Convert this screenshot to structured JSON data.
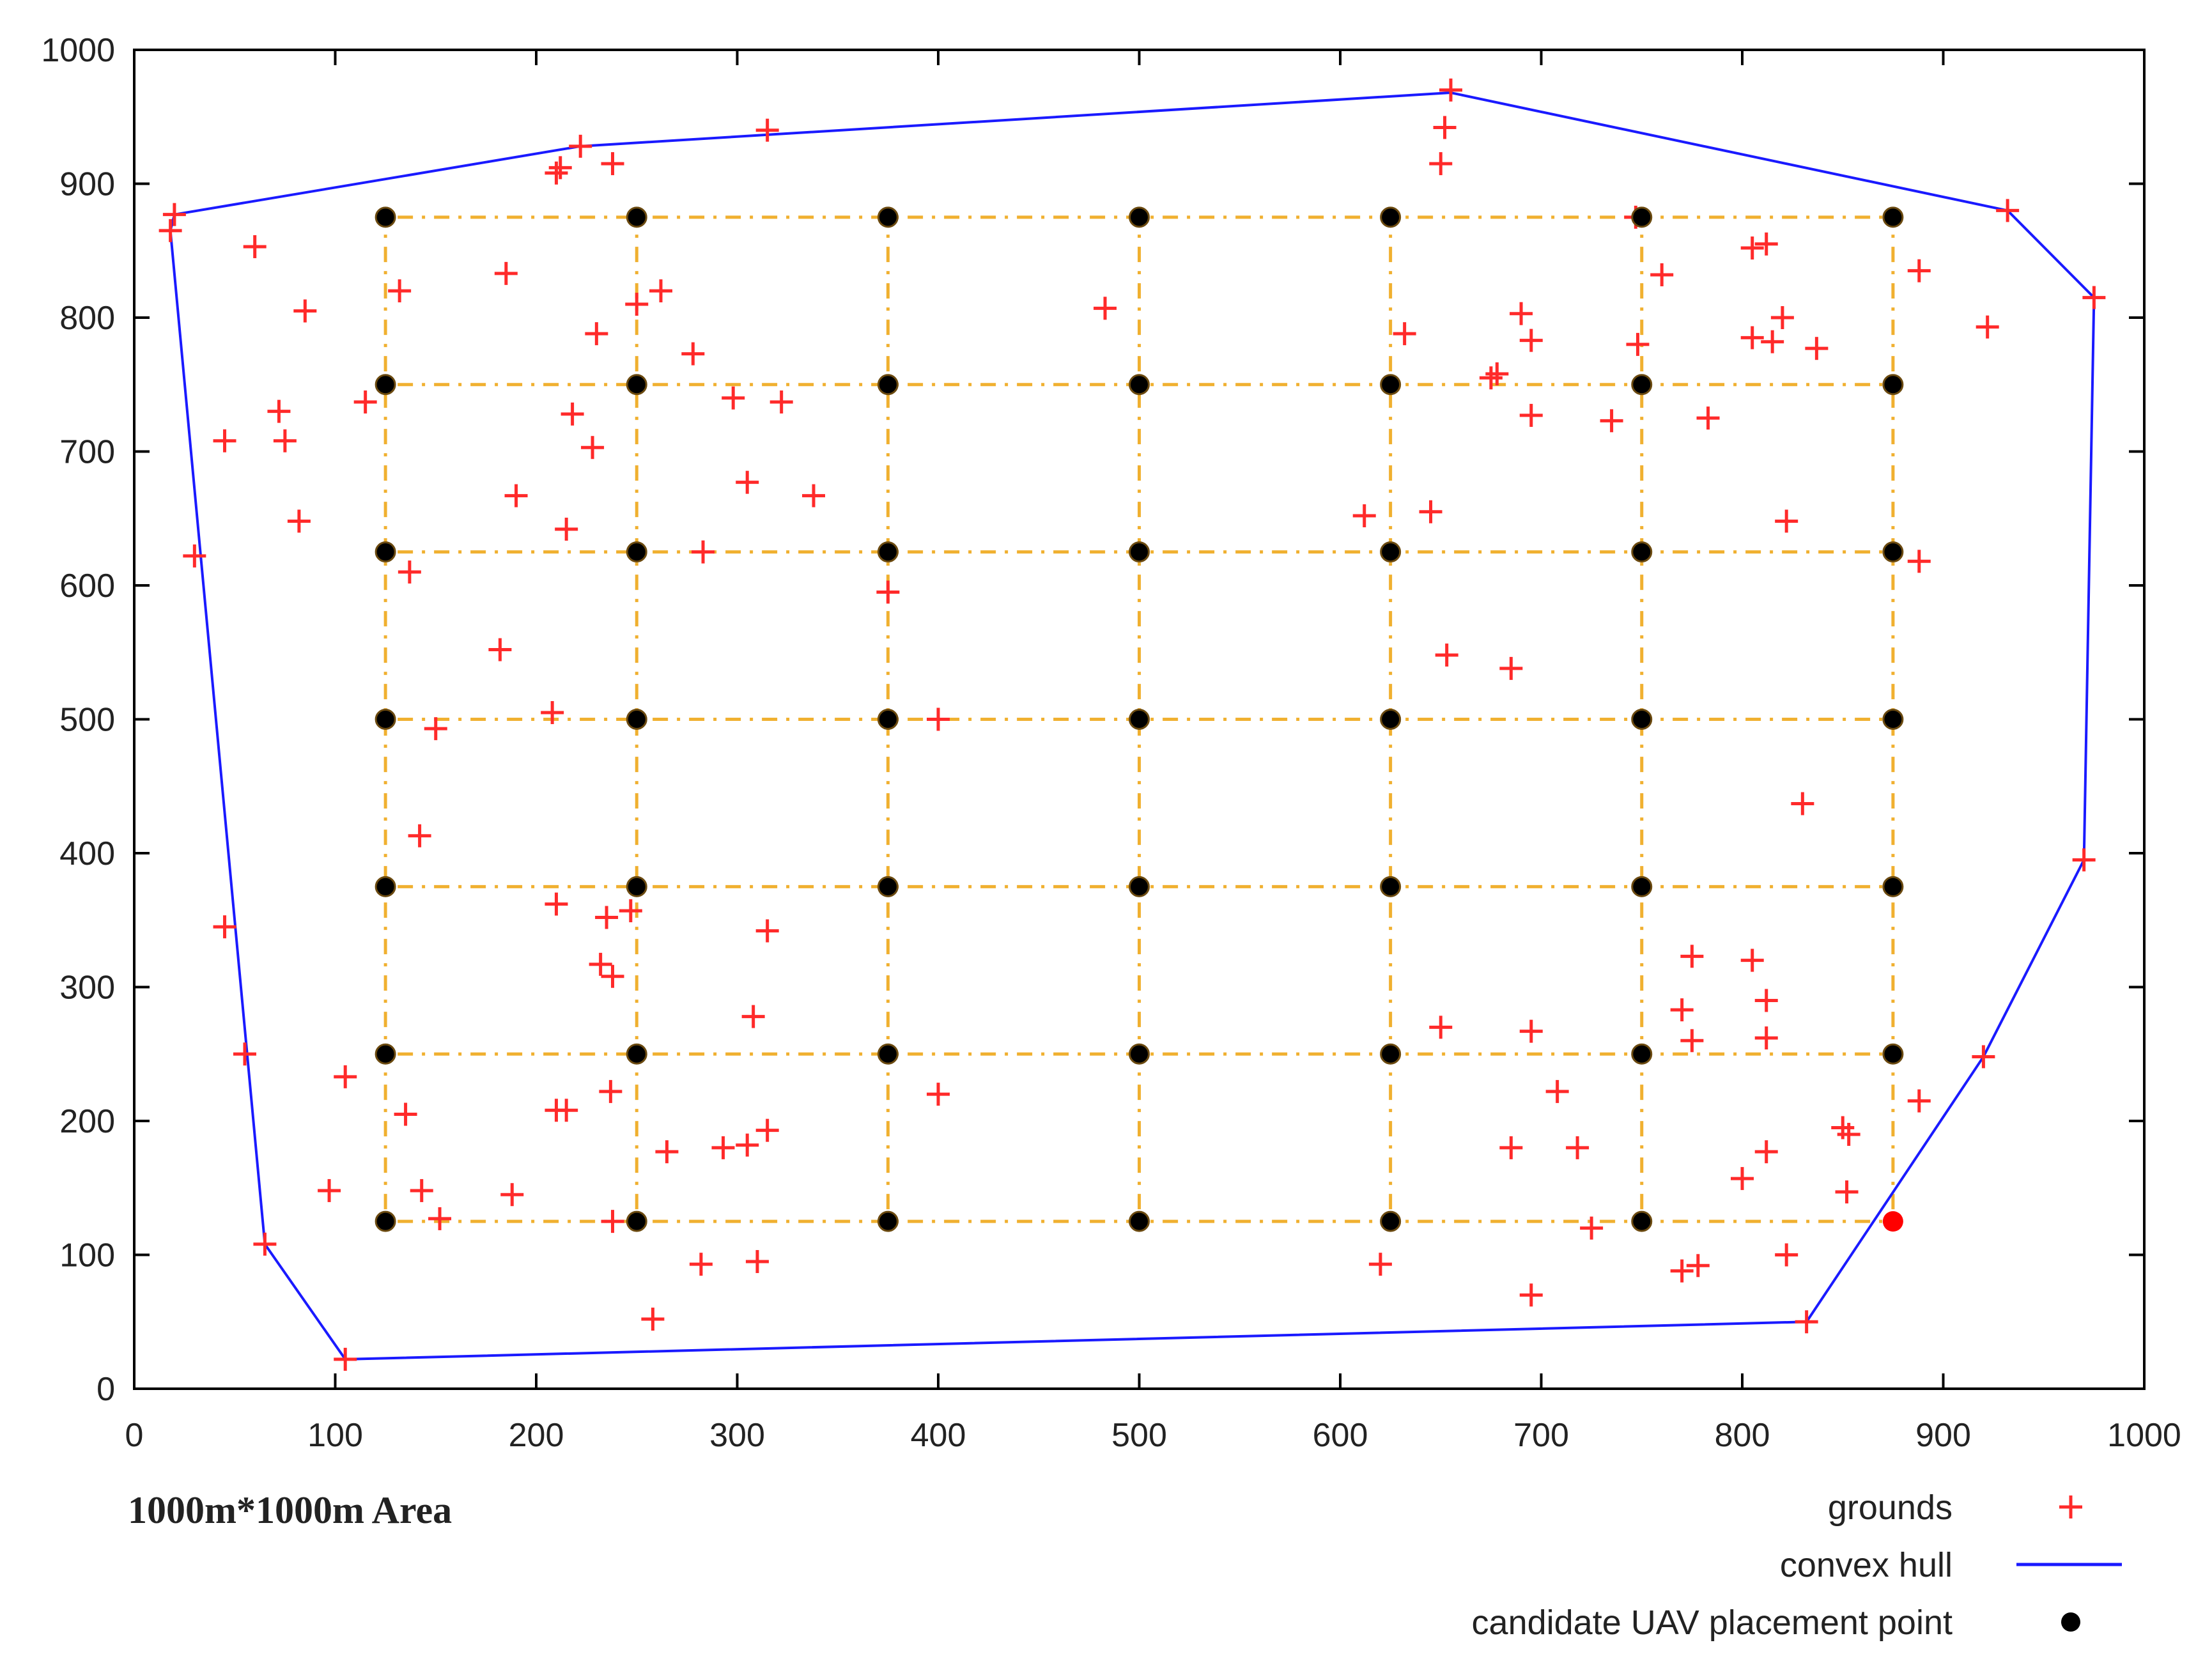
{
  "chart_data": {
    "type": "scatter",
    "xlim": [
      0,
      1000
    ],
    "ylim": [
      0,
      1000
    ],
    "x_ticks": [
      "0",
      "100",
      "200",
      "300",
      "400",
      "500",
      "600",
      "700",
      "800",
      "900",
      "1000"
    ],
    "y_ticks": [
      "0",
      "100",
      "200",
      "300",
      "400",
      "500",
      "600",
      "700",
      "800",
      "900",
      "1000"
    ],
    "caption": "1000m*1000m Area",
    "legend_position": "bottom-right",
    "grid": false,
    "colors": {
      "grounds": "#ff2a2a",
      "hull": "#1a1aff",
      "candidate": "#000000",
      "grid_lines": "#f0b030",
      "highlight": "#ff0000"
    },
    "series": [
      {
        "name": "grounds",
        "marker": "plus",
        "points": [
          [
            18,
            865
          ],
          [
            20,
            877
          ],
          [
            60,
            853
          ],
          [
            85,
            805
          ],
          [
            45,
            708
          ],
          [
            72,
            730
          ],
          [
            75,
            708
          ],
          [
            82,
            648
          ],
          [
            30,
            622
          ],
          [
            115,
            737
          ],
          [
            132,
            820
          ],
          [
            185,
            833
          ],
          [
            210,
            908
          ],
          [
            212,
            912
          ],
          [
            222,
            928
          ],
          [
            238,
            915
          ],
          [
            230,
            788
          ],
          [
            250,
            810
          ],
          [
            262,
            820
          ],
          [
            218,
            728
          ],
          [
            228,
            703
          ],
          [
            190,
            667
          ],
          [
            215,
            642
          ],
          [
            137,
            610
          ],
          [
            278,
            773
          ],
          [
            298,
            740
          ],
          [
            322,
            737
          ],
          [
            305,
            677
          ],
          [
            338,
            667
          ],
          [
            283,
            625
          ],
          [
            182,
            552
          ],
          [
            208,
            505
          ],
          [
            150,
            493
          ],
          [
            142,
            413
          ],
          [
            210,
            362
          ],
          [
            235,
            352
          ],
          [
            247,
            357
          ],
          [
            232,
            317
          ],
          [
            238,
            308
          ],
          [
            315,
            342
          ],
          [
            308,
            278
          ],
          [
            45,
            345
          ],
          [
            55,
            250
          ],
          [
            105,
            233
          ],
          [
            135,
            205
          ],
          [
            210,
            208
          ],
          [
            215,
            208
          ],
          [
            237,
            222
          ],
          [
            143,
            148
          ],
          [
            188,
            145
          ],
          [
            97,
            148
          ],
          [
            152,
            127
          ],
          [
            238,
            125
          ],
          [
            65,
            108
          ],
          [
            105,
            22
          ],
          [
            258,
            52
          ],
          [
            265,
            177
          ],
          [
            282,
            93
          ],
          [
            293,
            180
          ],
          [
            305,
            182
          ],
          [
            315,
            193
          ],
          [
            310,
            95
          ],
          [
            315,
            940
          ],
          [
            375,
            595
          ],
          [
            400,
            500
          ],
          [
            400,
            220
          ],
          [
            483,
            807
          ],
          [
            612,
            652
          ],
          [
            645,
            655
          ],
          [
            632,
            788
          ],
          [
            650,
            915
          ],
          [
            652,
            942
          ],
          [
            655,
            970
          ],
          [
            653,
            548
          ],
          [
            685,
            538
          ],
          [
            675,
            755
          ],
          [
            678,
            758
          ],
          [
            690,
            803
          ],
          [
            695,
            783
          ],
          [
            695,
            727
          ],
          [
            735,
            723
          ],
          [
            748,
            780
          ],
          [
            747,
            875
          ],
          [
            760,
            832
          ],
          [
            783,
            725
          ],
          [
            805,
            852
          ],
          [
            812,
            855
          ],
          [
            805,
            785
          ],
          [
            815,
            782
          ],
          [
            820,
            800
          ],
          [
            837,
            777
          ],
          [
            822,
            648
          ],
          [
            888,
            618
          ],
          [
            888,
            835
          ],
          [
            922,
            793
          ],
          [
            932,
            880
          ],
          [
            975,
            815
          ],
          [
            970,
            395
          ],
          [
            830,
            437
          ],
          [
            650,
            270
          ],
          [
            695,
            267
          ],
          [
            708,
            222
          ],
          [
            685,
            180
          ],
          [
            718,
            180
          ],
          [
            725,
            120
          ],
          [
            695,
            70
          ],
          [
            620,
            93
          ],
          [
            770,
            283
          ],
          [
            775,
            323
          ],
          [
            775,
            260
          ],
          [
            805,
            320
          ],
          [
            812,
            290
          ],
          [
            812,
            262
          ],
          [
            812,
            177
          ],
          [
            800,
            157
          ],
          [
            770,
            88
          ],
          [
            778,
            92
          ],
          [
            822,
            100
          ],
          [
            832,
            50
          ],
          [
            850,
            195
          ],
          [
            853,
            190
          ],
          [
            852,
            147
          ],
          [
            888,
            215
          ],
          [
            920,
            248
          ]
        ]
      },
      {
        "name": "convex hull",
        "marker": "line",
        "points": [
          [
            20,
            877
          ],
          [
            222,
            928
          ],
          [
            655,
            968
          ],
          [
            932,
            880
          ],
          [
            975,
            815
          ],
          [
            970,
            395
          ],
          [
            920,
            248
          ],
          [
            832,
            50
          ],
          [
            105,
            22
          ],
          [
            65,
            108
          ],
          [
            18,
            865
          ],
          [
            20,
            877
          ]
        ]
      },
      {
        "name": "candidate UAV placement point",
        "marker": "dot",
        "points": [
          [
            125,
            875
          ],
          [
            250,
            875
          ],
          [
            375,
            875
          ],
          [
            500,
            875
          ],
          [
            625,
            875
          ],
          [
            750,
            875
          ],
          [
            875,
            875
          ],
          [
            125,
            750
          ],
          [
            250,
            750
          ],
          [
            375,
            750
          ],
          [
            500,
            750
          ],
          [
            625,
            750
          ],
          [
            750,
            750
          ],
          [
            875,
            750
          ],
          [
            125,
            625
          ],
          [
            250,
            625
          ],
          [
            375,
            625
          ],
          [
            500,
            625
          ],
          [
            625,
            625
          ],
          [
            750,
            625
          ],
          [
            875,
            625
          ],
          [
            125,
            500
          ],
          [
            250,
            500
          ],
          [
            375,
            500
          ],
          [
            500,
            500
          ],
          [
            625,
            500
          ],
          [
            750,
            500
          ],
          [
            875,
            500
          ],
          [
            125,
            375
          ],
          [
            250,
            375
          ],
          [
            375,
            375
          ],
          [
            500,
            375
          ],
          [
            625,
            375
          ],
          [
            750,
            375
          ],
          [
            875,
            375
          ],
          [
            125,
            250
          ],
          [
            250,
            250
          ],
          [
            375,
            250
          ],
          [
            500,
            250
          ],
          [
            625,
            250
          ],
          [
            750,
            250
          ],
          [
            875,
            250
          ],
          [
            125,
            125
          ],
          [
            250,
            125
          ],
          [
            375,
            125
          ],
          [
            500,
            125
          ],
          [
            625,
            125
          ],
          [
            750,
            125
          ]
        ]
      }
    ],
    "highlight_point": [
      875,
      125
    ],
    "grid_x": [
      125,
      250,
      375,
      500,
      625,
      750,
      875
    ],
    "grid_y": [
      125,
      250,
      375,
      500,
      625,
      750,
      875
    ]
  }
}
